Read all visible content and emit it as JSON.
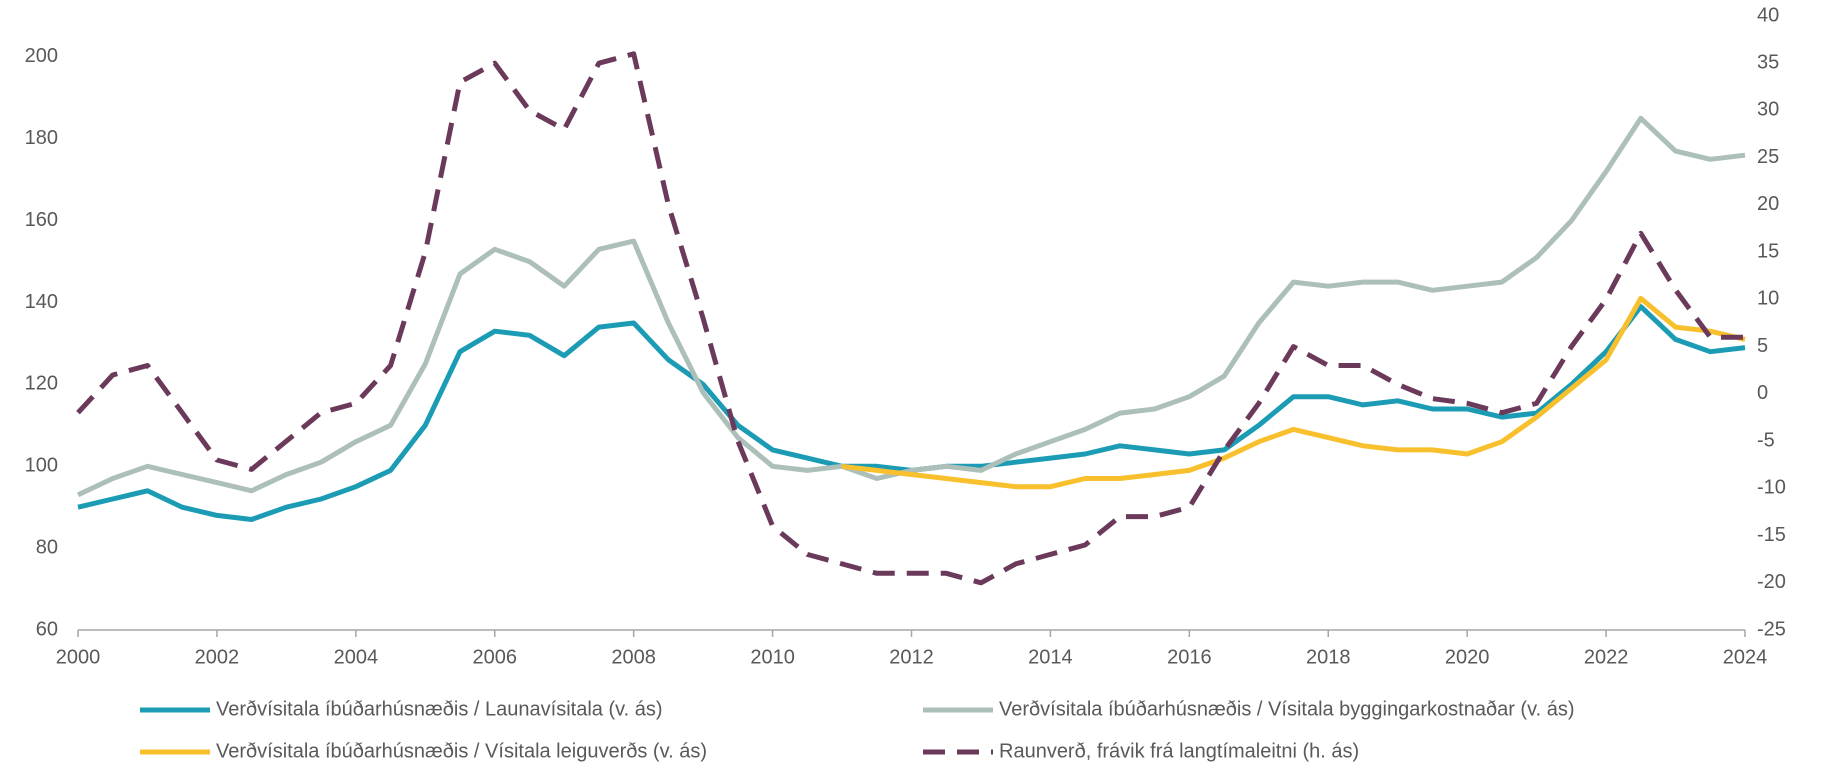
{
  "chart_data": {
    "type": "line",
    "x": [
      2000,
      2000.5,
      2001,
      2001.5,
      2002,
      2002.5,
      2003,
      2003.5,
      2004,
      2004.5,
      2005,
      2005.5,
      2006,
      2006.5,
      2007,
      2007.5,
      2008,
      2008.5,
      2009,
      2009.5,
      2010,
      2010.5,
      2011,
      2011.5,
      2012,
      2012.5,
      2013,
      2013.5,
      2014,
      2014.5,
      2015,
      2015.5,
      2016,
      2016.5,
      2017,
      2017.5,
      2018,
      2018.5,
      2019,
      2019.5,
      2020,
      2020.5,
      2021,
      2021.5,
      2022,
      2022.5,
      2023,
      2023.5,
      2024
    ],
    "xlim": [
      2000,
      2024
    ],
    "xticks": [
      2000,
      2002,
      2004,
      2006,
      2008,
      2010,
      2012,
      2014,
      2016,
      2018,
      2020,
      2022,
      2024
    ],
    "ylim": [
      60,
      210
    ],
    "yticks": [
      60,
      80,
      100,
      120,
      140,
      160,
      180,
      200
    ],
    "y2lim": [
      -25,
      40
    ],
    "y2ticks": [
      -25,
      -20,
      -15,
      -10,
      -5,
      0,
      5,
      10,
      15,
      20,
      25,
      30,
      35,
      40
    ],
    "series": [
      {
        "name": "Verðvísitala íbúðarhúsnæðis / Launavísitala (v. ás)",
        "color": "#1b9cb4",
        "dashed": false,
        "values": [
          90,
          92,
          94,
          90,
          88,
          87,
          90,
          92,
          95,
          99,
          110,
          128,
          133,
          132,
          127,
          134,
          135,
          126,
          120,
          110,
          104,
          102,
          100,
          100,
          99,
          100,
          100,
          101,
          102,
          103,
          105,
          104,
          103,
          104,
          110,
          117,
          117,
          115,
          116,
          114,
          114,
          112,
          113,
          120,
          128,
          139,
          131,
          128,
          129
        ]
      },
      {
        "name": "Verðvísitala íbúðarhúsnæðis / Vísitala byggingarkostnaðar (v. ás)",
        "color": "#adbfb9",
        "dashed": false,
        "values": [
          93,
          97,
          100,
          98,
          96,
          94,
          98,
          101,
          106,
          110,
          125,
          147,
          153,
          150,
          144,
          153,
          155,
          135,
          118,
          107,
          100,
          99,
          100,
          97,
          99,
          100,
          99,
          103,
          106,
          109,
          113,
          114,
          117,
          122,
          135,
          145,
          144,
          145,
          145,
          143,
          144,
          145,
          151,
          160,
          172,
          185,
          177,
          175,
          176
        ]
      },
      {
        "name": "Verðvísitala íbúðarhúsnæðis / Vísitala leiguverðs (v. ás)",
        "color": "#f9c02e",
        "dashed": false,
        "values": [
          null,
          null,
          null,
          null,
          null,
          null,
          null,
          null,
          null,
          null,
          null,
          null,
          null,
          null,
          null,
          null,
          null,
          null,
          null,
          null,
          null,
          null,
          100,
          99,
          98,
          97,
          96,
          95,
          95,
          97,
          97,
          98,
          99,
          102,
          106,
          109,
          107,
          105,
          104,
          104,
          103,
          106,
          112,
          119,
          126,
          141,
          134,
          133,
          131
        ]
      },
      {
        "name": "Raunverð, frávik frá langtímaleitni (h. ás)",
        "color": "#6b3a5b",
        "dashed": true,
        "axis": "y2",
        "values": [
          -2,
          2,
          3,
          -2,
          -7,
          -8,
          -5,
          -2,
          -1,
          3,
          15,
          33,
          35,
          30,
          28,
          35,
          36,
          20,
          8,
          -5,
          -14,
          -17,
          -18,
          -19,
          -19,
          -19,
          -20,
          -18,
          -17,
          -16,
          -13,
          -13,
          -12,
          -6,
          -1,
          5,
          3,
          3,
          1,
          -0.5,
          -1,
          -2,
          -1,
          5,
          10,
          17,
          11,
          6,
          6
        ]
      }
    ]
  }
}
